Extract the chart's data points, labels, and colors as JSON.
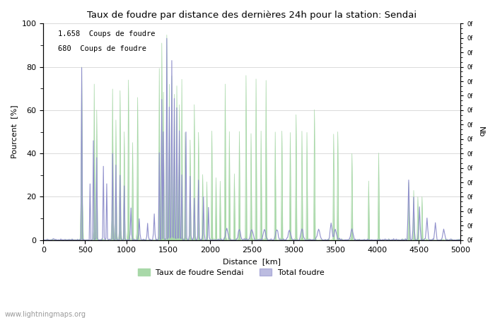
{
  "title": "Taux de foudre par distance des dernières 24h pour la station: Sendai",
  "xlabel": "Distance  [km]",
  "ylabel_left": "Pourcent  [%]",
  "ylabel_right": "Nb",
  "legend1": "Taux de foudre Sendai",
  "legend2": "Total foudre",
  "annotation1": "1.658  Coups de foudre",
  "annotation2": "680  Coups de foudre",
  "watermark": "www.lightningmaps.org",
  "xlim": [
    0,
    5000
  ],
  "ylim": [
    0,
    100
  ],
  "color_green": "#a8d8a8",
  "color_blue": "#9090cc",
  "background": "#ffffff",
  "grid_color": "#cccccc",
  "x_ticks": [
    0,
    500,
    1000,
    1500,
    2000,
    2500,
    3000,
    3500,
    4000,
    4500,
    5000
  ],
  "y_ticks": [
    0,
    20,
    40,
    60,
    80,
    100
  ]
}
